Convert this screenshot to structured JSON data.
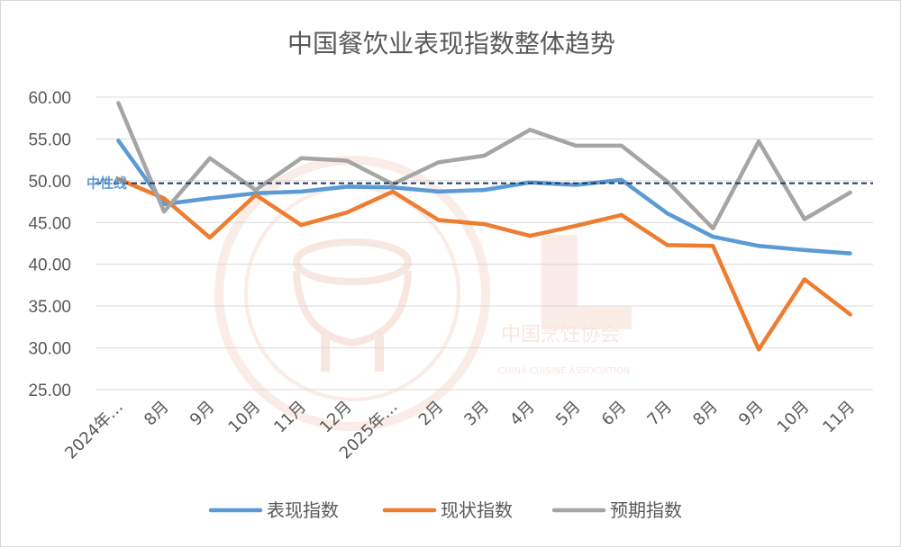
{
  "chart_data": {
    "type": "line",
    "title": "中国餐饮业表现指数整体趋势",
    "categories": [
      "2024年…",
      "8月",
      "9月",
      "10月",
      "11月",
      "12月",
      "2025年…",
      "2月",
      "3月",
      "4月",
      "5月",
      "6月",
      "7月",
      "8月",
      "9月",
      "10月",
      "11月"
    ],
    "ylim": [
      25,
      60
    ],
    "yticks": [
      60,
      55,
      50,
      45,
      40,
      35,
      30,
      25
    ],
    "ytick_labels": [
      "60.00",
      "55.00",
      "50.00",
      "45.00",
      "40.00",
      "35.00",
      "30.00",
      "25.00"
    ],
    "grid": true,
    "legend_position": "bottom",
    "series": [
      {
        "name": "表现指数",
        "color": "#5b9bd5",
        "values": [
          54.8,
          47.2,
          47.9,
          48.5,
          48.7,
          49.3,
          49.2,
          48.7,
          48.9,
          49.8,
          49.5,
          50.1,
          46.1,
          43.3,
          42.2,
          41.7,
          41.3
        ]
      },
      {
        "name": "现状指数",
        "color": "#ed7d31",
        "values": [
          50.2,
          47.9,
          43.2,
          48.3,
          44.7,
          46.2,
          48.7,
          45.3,
          44.8,
          43.4,
          44.6,
          45.9,
          42.3,
          42.2,
          29.8,
          38.2,
          34.0
        ]
      },
      {
        "name": "预期指数",
        "color": "#a5a5a5",
        "values": [
          59.3,
          46.3,
          52.7,
          48.9,
          52.7,
          52.4,
          49.6,
          52.2,
          53.0,
          56.1,
          54.2,
          54.2,
          49.9,
          44.3,
          54.7,
          45.4,
          48.6
        ]
      }
    ],
    "reference_line": {
      "value": 49.7,
      "label": "中性线",
      "color": "#203864"
    },
    "watermark": {
      "text": "中国烹饪协会",
      "subtext": "CHINA CUISINE ASSOCIATION"
    }
  }
}
